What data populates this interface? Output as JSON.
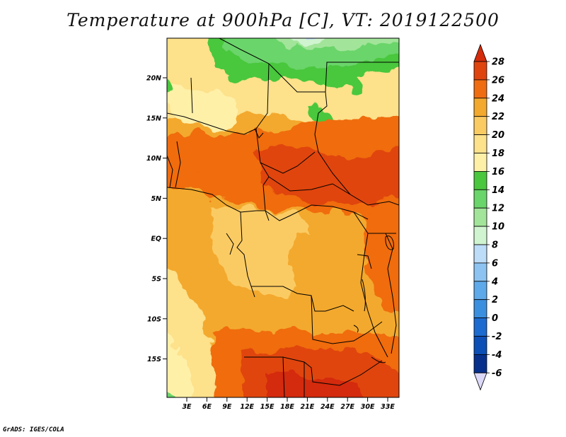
{
  "title": "Temperature at 900hPa [C], VT: 2019122500",
  "credit": "GrADS: IGES/COLA",
  "map": {
    "lat_labels": [
      "20N",
      "15N",
      "10N",
      "5N",
      "EQ",
      "5S",
      "10S",
      "15S"
    ],
    "lon_labels": [
      "3E",
      "6E",
      "9E",
      "12E",
      "15E",
      "18E",
      "21E",
      "24E",
      "27E",
      "30E",
      "33E"
    ]
  },
  "colorbar": {
    "levels": [
      "28",
      "26",
      "24",
      "22",
      "20",
      "18",
      "16",
      "14",
      "12",
      "10",
      "8",
      "6",
      "4",
      "2",
      "0",
      "-2",
      "-4",
      "-6"
    ],
    "colors": [
      "#e0440e",
      "#f06c11",
      "#f3a92d",
      "#fbcb63",
      "#fde18b",
      "#fff0a8",
      "#4ac73d",
      "#6ad56a",
      "#a2e59a",
      "#d0f4d0",
      "#bcdcf7",
      "#8dc3f0",
      "#5ea9ea",
      "#3b8fdf",
      "#1c6bd0",
      "#0c4fb6",
      "#07308c",
      "#0b1658"
    ],
    "top_arrow_color": "#d42b0a",
    "bottom_arrow_color": "#dcd8f8"
  }
}
